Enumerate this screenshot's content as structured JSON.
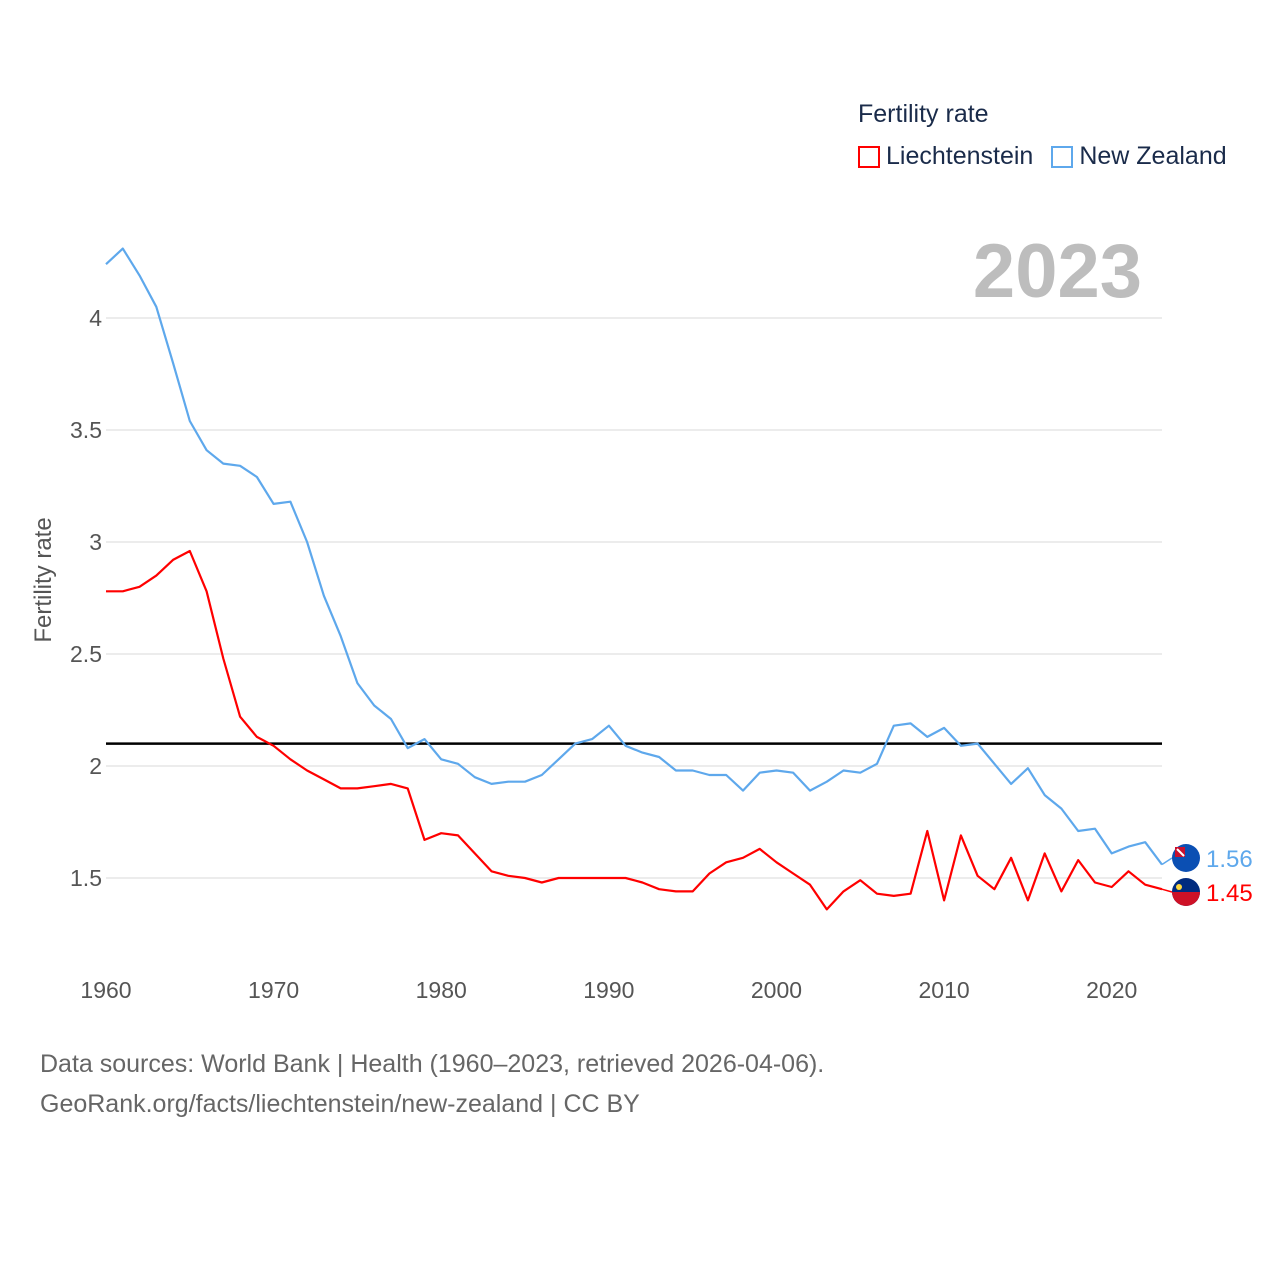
{
  "chart_data": {
    "type": "line",
    "title": "Fertility rate",
    "ylabel": "Fertility rate",
    "xlabel": "",
    "year_label": "2023",
    "x": [
      1960,
      1961,
      1962,
      1963,
      1964,
      1965,
      1966,
      1967,
      1968,
      1969,
      1970,
      1971,
      1972,
      1973,
      1974,
      1975,
      1976,
      1977,
      1978,
      1979,
      1980,
      1981,
      1982,
      1983,
      1984,
      1985,
      1986,
      1987,
      1988,
      1989,
      1990,
      1991,
      1992,
      1993,
      1994,
      1995,
      1996,
      1997,
      1998,
      1999,
      2000,
      2001,
      2002,
      2003,
      2004,
      2005,
      2006,
      2007,
      2008,
      2009,
      2010,
      2011,
      2012,
      2013,
      2014,
      2015,
      2016,
      2017,
      2018,
      2019,
      2020,
      2021,
      2022,
      2023
    ],
    "series": [
      {
        "name": "Liechtenstein",
        "color": "#ff0000",
        "end_label": "1.45",
        "values": [
          2.78,
          2.78,
          2.8,
          2.85,
          2.92,
          2.96,
          2.78,
          2.48,
          2.22,
          2.13,
          2.09,
          2.03,
          1.98,
          1.94,
          1.9,
          1.9,
          1.91,
          1.92,
          1.9,
          1.67,
          1.7,
          1.69,
          1.61,
          1.53,
          1.51,
          1.5,
          1.48,
          1.5,
          1.5,
          1.5,
          1.5,
          1.5,
          1.48,
          1.45,
          1.44,
          1.44,
          1.52,
          1.57,
          1.59,
          1.63,
          1.57,
          1.52,
          1.47,
          1.36,
          1.44,
          1.49,
          1.43,
          1.42,
          1.43,
          1.71,
          1.4,
          1.69,
          1.51,
          1.45,
          1.59,
          1.4,
          1.61,
          1.44,
          1.58,
          1.48,
          1.46,
          1.53,
          1.47,
          1.45
        ]
      },
      {
        "name": "New Zealand",
        "color": "#5ea8ec",
        "end_label": "1.56",
        "values": [
          4.24,
          4.31,
          4.19,
          4.05,
          3.8,
          3.54,
          3.41,
          3.35,
          3.34,
          3.29,
          3.17,
          3.18,
          3.0,
          2.76,
          2.58,
          2.37,
          2.27,
          2.21,
          2.08,
          2.12,
          2.03,
          2.01,
          1.95,
          1.92,
          1.93,
          1.93,
          1.96,
          2.03,
          2.1,
          2.12,
          2.18,
          2.09,
          2.06,
          2.04,
          1.98,
          1.98,
          1.96,
          1.96,
          1.89,
          1.97,
          1.98,
          1.97,
          1.89,
          1.93,
          1.98,
          1.97,
          2.01,
          2.18,
          2.19,
          2.13,
          2.17,
          2.09,
          2.1,
          2.01,
          1.92,
          1.99,
          1.87,
          1.81,
          1.71,
          1.72,
          1.61,
          1.64,
          1.66,
          1.56
        ]
      }
    ],
    "reference_line": 2.1,
    "yticks": [
      1.5,
      2,
      2.5,
      3,
      3.5,
      4
    ],
    "ytick_labels": [
      "1.5",
      "2",
      "2.5",
      "3",
      "3.5",
      "4"
    ],
    "xticks": [
      1960,
      1970,
      1980,
      1990,
      2000,
      2010,
      2020
    ],
    "xtick_labels": [
      "1960",
      "1970",
      "1980",
      "1990",
      "2000",
      "2010",
      "2020"
    ],
    "xlim": [
      1960,
      2023
    ],
    "ylim": [
      1.1,
      4.5
    ],
    "grid": true,
    "legend_position": "top-right"
  },
  "footer": {
    "line1": "Data sources: World Bank | Health (1960–2023, retrieved 2026-04-06).",
    "line2": "GeoRank.org/facts/liechtenstein/new-zealand | CC BY"
  }
}
